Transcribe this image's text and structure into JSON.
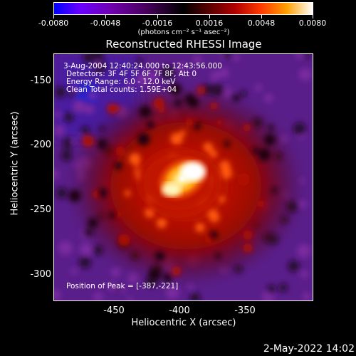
{
  "colorbar": {
    "ticks": [
      "-0.0080",
      "-0.0048",
      "-0.0016",
      "0.0016",
      "0.0048",
      "0.0080"
    ],
    "units": "(photons cm⁻² s⁻¹ asec⁻²)"
  },
  "title": "Reconstructed RHESSI Image",
  "annotations": {
    "time": "3-Aug-2004 12:40:24.000 to 12:43:56.000",
    "detectors": "Detectors: 3F 4F 5F 6F 7F 8F, Att 0",
    "energy": "Energy Range: 6.0 - 12.0 keV",
    "method": "Clean    Total counts: 1.59E+04",
    "peak": "Position of Peak = [-387,-221]"
  },
  "axes": {
    "xlabel": "Heliocentric X (arcsec)",
    "ylabel": "Heliocentric Y (arcsec)",
    "xticks": [
      "-450",
      "-400",
      "-350"
    ],
    "yticks": [
      "-150",
      "-200",
      "-250",
      "-300"
    ]
  },
  "footer": {
    "date": "2-May-2022 14:02"
  }
}
